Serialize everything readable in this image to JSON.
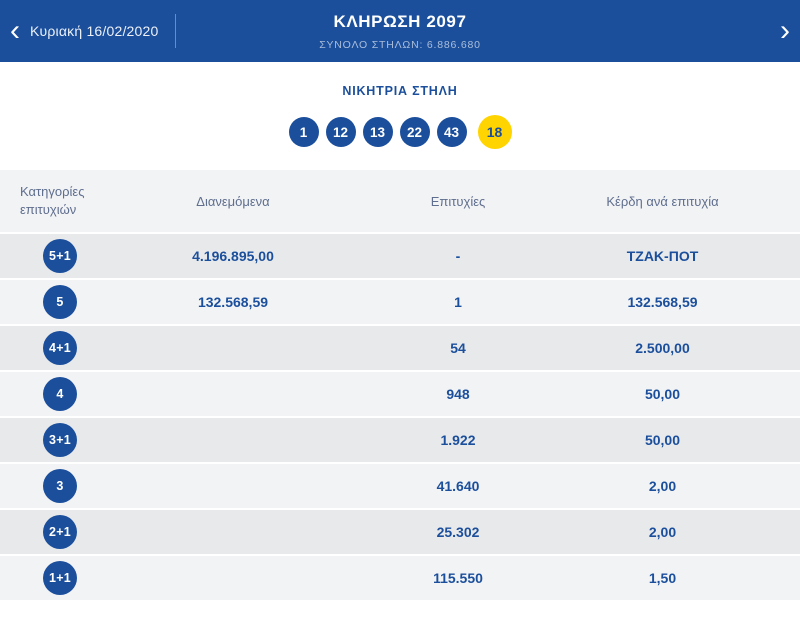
{
  "header": {
    "prev_arrow_glyph": "‹",
    "next_arrow_glyph": "›",
    "date": "Κυριακή 16/02/2020",
    "title": "ΚΛΗΡΩΣΗ 2097",
    "subtitle": "ΣΥΝΟΛΟ ΣΤΗΛΩΝ: 6.886.680"
  },
  "winning_column": {
    "label": "ΝΙΚΗΤΡΙΑ ΣΤΗΛΗ",
    "numbers": [
      "1",
      "12",
      "13",
      "22",
      "43"
    ],
    "joker_number": "18"
  },
  "table": {
    "headers": [
      "Κατηγορίες επιτυχιών",
      "Διανεμόμενα",
      "Επιτυχίες",
      "Κέρδη ανά επιτυχία"
    ],
    "rows": [
      {
        "category": "5+1",
        "distributed": "4.196.895,00",
        "winners": "-",
        "prize": "ΤΖΑΚ-ΠΟΤ"
      },
      {
        "category": "5",
        "distributed": "132.568,59",
        "winners": "1",
        "prize": "132.568,59"
      },
      {
        "category": "4+1",
        "distributed": "",
        "winners": "54",
        "prize": "2.500,00"
      },
      {
        "category": "4",
        "distributed": "",
        "winners": "948",
        "prize": "50,00"
      },
      {
        "category": "3+1",
        "distributed": "",
        "winners": "1.922",
        "prize": "50,00"
      },
      {
        "category": "3",
        "distributed": "",
        "winners": "41.640",
        "prize": "2,00"
      },
      {
        "category": "2+1",
        "distributed": "",
        "winners": "25.302",
        "prize": "2,00"
      },
      {
        "category": "1+1",
        "distributed": "",
        "winners": "115.550",
        "prize": "1,50"
      }
    ]
  },
  "colors": {
    "brand_blue": "#1b4f9c",
    "joker_yellow": "#ffd400",
    "row_dark": "#e8e9eb",
    "row_light": "#f2f3f5"
  }
}
